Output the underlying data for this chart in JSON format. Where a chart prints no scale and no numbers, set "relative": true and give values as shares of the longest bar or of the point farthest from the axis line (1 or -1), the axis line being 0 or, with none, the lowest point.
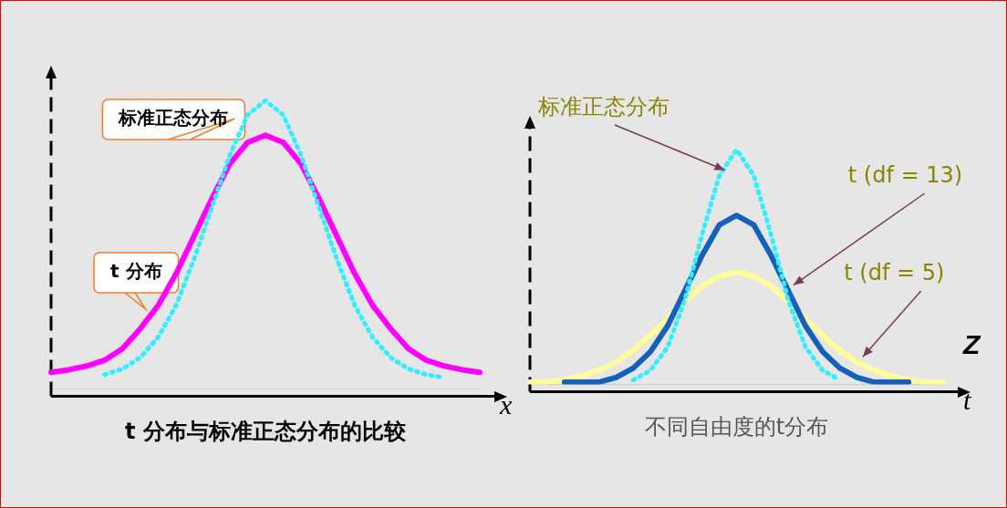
{
  "chart_data": [
    {
      "type": "line",
      "relative": true,
      "marker": "none",
      "xlabel": "x",
      "legend": false,
      "categories": [
        null,
        null,
        null,
        null,
        null,
        null,
        null,
        null,
        null,
        null,
        null,
        null,
        null,
        null,
        null,
        null,
        null,
        null,
        null,
        null,
        null,
        null,
        null,
        null,
        null
      ],
      "series": [
        {
          "name": "标准正态分布",
          "color": "#33eeff",
          "line_style": "dotted",
          "values": [
            null,
            null,
            null,
            0.05,
            0.07,
            0.11,
            0.18,
            0.29,
            0.45,
            0.63,
            0.81,
            0.95,
            1.0,
            0.95,
            0.81,
            0.63,
            0.45,
            0.29,
            0.18,
            0.11,
            0.07,
            0.05,
            0.04,
            null,
            null
          ]
        },
        {
          "name": "t 分布",
          "color": "#ff00ff",
          "line_style": "solid",
          "values": [
            0.058,
            0.067,
            0.08,
            0.1,
            0.14,
            0.21,
            0.29,
            0.4,
            0.53,
            0.66,
            0.78,
            0.855,
            0.88,
            0.855,
            0.78,
            0.66,
            0.53,
            0.4,
            0.29,
            0.21,
            0.14,
            0.1,
            0.08,
            0.067,
            0.058
          ]
        }
      ],
      "annotations": [
        "t 分布与标准正态分布的比较"
      ]
    },
    {
      "type": "line",
      "relative": true,
      "marker": "none",
      "xlabel": "t",
      "legend": false,
      "categories": [
        null,
        null,
        null,
        null,
        null,
        null,
        null,
        null,
        null,
        null,
        null,
        null,
        null,
        null,
        null,
        null,
        null,
        null,
        null,
        null,
        null,
        null,
        null,
        null,
        null
      ],
      "series": [
        {
          "name": "标准正态分布",
          "color": "#33eeff",
          "line_style": "dotted",
          "values": [
            null,
            null,
            null,
            null,
            null,
            null,
            0.02,
            0.06,
            0.16,
            0.36,
            0.64,
            0.89,
            1.0,
            0.89,
            0.64,
            0.36,
            0.16,
            0.06,
            0.02,
            null,
            null,
            null,
            null,
            null,
            null
          ]
        },
        {
          "name": "t (df = 13)",
          "color": "#1560bd",
          "line_style": "solid",
          "values": [
            null,
            null,
            0.01,
            0.01,
            0.01,
            0.03,
            0.07,
            0.14,
            0.25,
            0.4,
            0.55,
            0.68,
            0.72,
            0.68,
            0.55,
            0.4,
            0.25,
            0.14,
            0.07,
            0.03,
            0.01,
            0.01,
            0.01,
            null,
            null
          ]
        },
        {
          "name": "t (df = 5)",
          "color": "#ffff99",
          "line_style": "solid",
          "values": [
            0.01,
            0.01,
            0.02,
            0.035,
            0.06,
            0.095,
            0.145,
            0.21,
            0.28,
            0.355,
            0.42,
            0.46,
            0.48,
            0.46,
            0.42,
            0.355,
            0.28,
            0.21,
            0.145,
            0.095,
            0.06,
            0.035,
            0.02,
            0.01,
            0.01
          ]
        }
      ],
      "annotations": [
        "Z",
        "不同自由度的t分布"
      ]
    }
  ]
}
